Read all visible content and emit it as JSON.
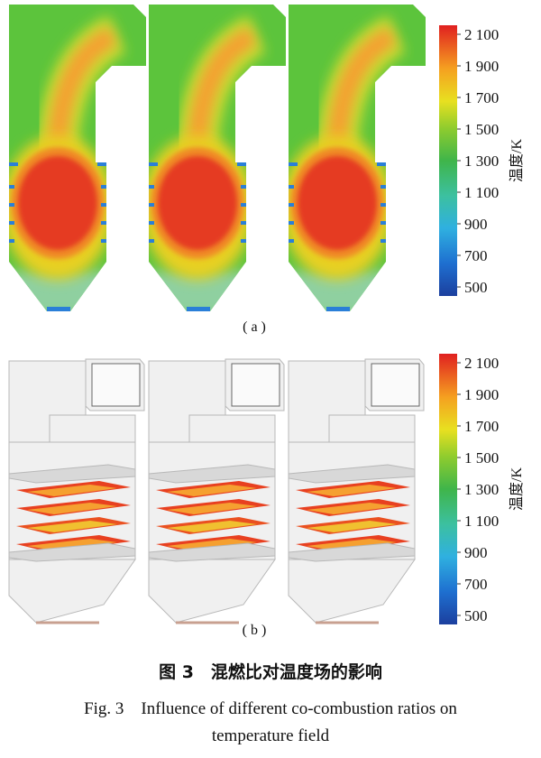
{
  "panel_a": {
    "label": "( a )",
    "colorbar": {
      "title": "温度/K",
      "ticks": [
        "2 100",
        "1 900",
        "1 700",
        "1 500",
        "1 300",
        "1 100",
        "900",
        "700",
        "500"
      ]
    }
  },
  "panel_b": {
    "label": "( b )",
    "colorbar": {
      "title": "温度/K",
      "ticks": [
        "2 100",
        "1 900",
        "1 700",
        "1 500",
        "1 300",
        "1 100",
        "900",
        "700",
        "500"
      ]
    }
  },
  "caption": {
    "cn": "图 3　混燃比对温度场的影响",
    "en": [
      "Fig. 3　Influence of different co-combustion ratios on",
      "temperature field"
    ]
  }
}
